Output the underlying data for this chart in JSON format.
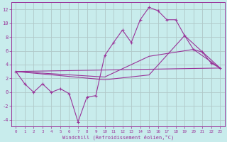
{
  "background_color": "#c8ecec",
  "grid_color": "#b0c8c8",
  "line_color": "#993399",
  "spine_color": "#993399",
  "xlabel": "Windchill (Refroidissement éolien,°C)",
  "ylim": [
    -5,
    13
  ],
  "xlim": [
    -0.5,
    23.5
  ],
  "yticks": [
    -4,
    -2,
    0,
    2,
    4,
    6,
    8,
    10,
    12
  ],
  "xticks": [
    0,
    1,
    2,
    3,
    4,
    5,
    6,
    7,
    8,
    9,
    10,
    11,
    12,
    13,
    14,
    15,
    16,
    17,
    18,
    19,
    20,
    21,
    22,
    23
  ],
  "line1": {
    "x": [
      0,
      1,
      2,
      3,
      4,
      5,
      6,
      7,
      8,
      9,
      10,
      11,
      12,
      13,
      14,
      15,
      16,
      17,
      18,
      19,
      20,
      21,
      22,
      23
    ],
    "y": [
      3.0,
      1.2,
      0.0,
      1.2,
      0.0,
      0.5,
      -0.2,
      -4.3,
      -0.7,
      -0.5,
      5.3,
      7.2,
      9.0,
      7.2,
      10.5,
      12.3,
      11.8,
      10.5,
      10.5,
      8.2,
      6.2,
      5.8,
      4.2,
      3.5
    ]
  },
  "line2": {
    "x": [
      0,
      23
    ],
    "y": [
      3.0,
      3.5
    ]
  },
  "line3": {
    "x": [
      0,
      10,
      15,
      20,
      23
    ],
    "y": [
      3.0,
      2.2,
      5.2,
      6.2,
      3.5
    ]
  },
  "line4": {
    "x": [
      0,
      10,
      15,
      19,
      23
    ],
    "y": [
      3.0,
      1.8,
      2.5,
      8.2,
      3.5
    ]
  }
}
